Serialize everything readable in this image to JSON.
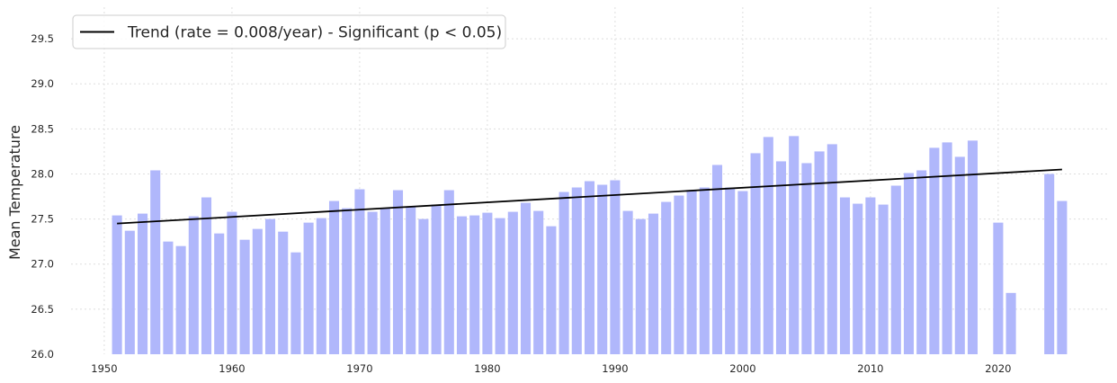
{
  "chart_data": {
    "type": "bar",
    "xlabel": "",
    "ylabel": "Mean Temperature",
    "ylim": [
      26.0,
      29.85
    ],
    "xlim": [
      1947.4,
      2028.6
    ],
    "yticks": [
      "26.0",
      "26.5",
      "27.0",
      "27.5",
      "28.0",
      "28.5",
      "29.0",
      "29.5"
    ],
    "xticks": [
      "1950",
      "1960",
      "1970",
      "1980",
      "1990",
      "2000",
      "2010",
      "2020"
    ],
    "grid": true,
    "legend_position": "top-left",
    "bar_color": "#b0b7fb",
    "trend_color": "#000000",
    "series": [
      {
        "type": "bar",
        "x": [
          1951,
          1952,
          1953,
          1954,
          1955,
          1956,
          1957,
          1958,
          1959,
          1960,
          1961,
          1962,
          1963,
          1964,
          1965,
          1966,
          1967,
          1968,
          1969,
          1970,
          1971,
          1972,
          1973,
          1974,
          1975,
          1976,
          1977,
          1978,
          1979,
          1980,
          1981,
          1982,
          1983,
          1984,
          1985,
          1986,
          1987,
          1988,
          1989,
          1990,
          1991,
          1992,
          1993,
          1994,
          1995,
          1996,
          1997,
          1998,
          1999,
          2000,
          2001,
          2002,
          2003,
          2004,
          2005,
          2006,
          2007,
          2008,
          2009,
          2010,
          2011,
          2012,
          2013,
          2014,
          2015,
          2016,
          2017,
          2018,
          2020,
          2021,
          2024,
          2025
        ],
        "values": [
          27.54,
          27.37,
          27.56,
          28.04,
          27.25,
          27.2,
          27.53,
          27.74,
          27.34,
          27.58,
          27.27,
          27.39,
          27.5,
          27.36,
          27.13,
          27.46,
          27.51,
          27.7,
          27.62,
          27.83,
          27.58,
          27.62,
          27.82,
          27.64,
          27.5,
          27.66,
          27.82,
          27.53,
          27.54,
          27.57,
          27.51,
          27.58,
          27.68,
          27.59,
          27.42,
          27.8,
          27.85,
          27.92,
          27.88,
          27.93,
          27.59,
          27.5,
          27.56,
          27.69,
          27.76,
          27.82,
          27.85,
          28.1,
          27.85,
          27.81,
          28.23,
          28.41,
          28.14,
          28.42,
          28.12,
          28.25,
          28.33,
          27.74,
          27.67,
          27.74,
          27.66,
          27.87,
          28.01,
          28.04,
          28.29,
          28.35,
          28.19,
          28.37,
          27.46,
          26.68,
          28.0,
          27.7
        ]
      },
      {
        "type": "line",
        "name": "Trend (rate = 0.008/year) - Significant (p < 0.05)",
        "x": [
          1951,
          2025
        ],
        "values": [
          27.45,
          28.05
        ]
      }
    ]
  }
}
